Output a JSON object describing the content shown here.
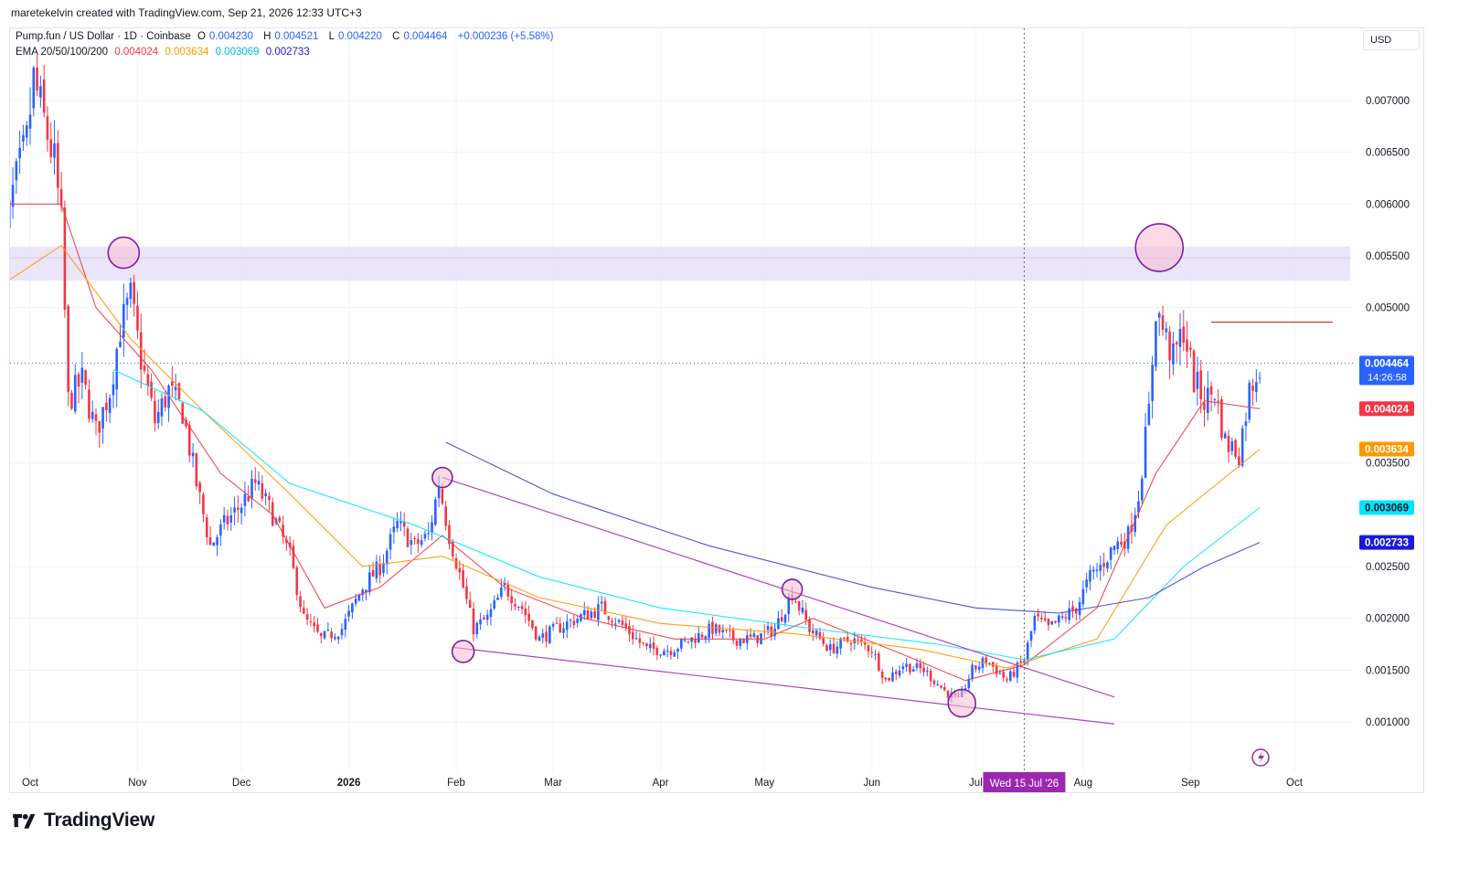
{
  "header": {
    "created_by": "maretekelvin created with TradingView.com, Sep 21, 2026 12:33 UTC+3"
  },
  "legend": {
    "symbol": "Pump.fun / US Dollar · 1D · Coinbase",
    "o_label": "O",
    "o_value": "0.004230",
    "h_label": "H",
    "h_value": "0.004521",
    "l_label": "L",
    "l_value": "0.004220",
    "c_label": "C",
    "c_value": "0.004464",
    "change": "+0.000236 (+5.58%)",
    "ema_label": "EMA 20/50/100/200",
    "ema20": "0.004024",
    "ema50": "0.003634",
    "ema100": "0.003069",
    "ema200": "0.002733"
  },
  "currency_button": "USD",
  "price_tags": {
    "last_price": "0.004464",
    "countdown": "14:26:58",
    "ema20": "0.004024",
    "ema50": "0.003634",
    "ema100": "0.003069",
    "ema200": "0.002733"
  },
  "crosshair_label": "Wed 15 Jul '26",
  "brand": "TradingView",
  "colors": {
    "up": "#2962ff",
    "down": "#f23645",
    "ema20": "#f23645",
    "ema50": "#ff9800",
    "ema100": "#00e5ff",
    "ema200": "#3f3fd9",
    "zone": "#e8e0f8",
    "trendline": "#ab47bc",
    "accent": "#9c27b0"
  },
  "chart_data": {
    "type": "candlestick",
    "interval": "1D",
    "y_axis": {
      "position": "right",
      "ticks": [
        "0.007000",
        "0.006500",
        "0.006000",
        "0.005500",
        "0.005000",
        "0.003500",
        "0.002500",
        "0.002000",
        "0.001500",
        "0.001000"
      ],
      "tick_values": [
        0.007,
        0.0065,
        0.006,
        0.0055,
        0.005,
        0.0035,
        0.0025,
        0.002,
        0.0015,
        0.001
      ]
    },
    "x_axis": {
      "labels": [
        "Oct",
        "Nov",
        "Dec",
        "2026",
        "Feb",
        "Mar",
        "Apr",
        "May",
        "Jun",
        "Jul",
        "Aug",
        "Sep",
        "Oct"
      ],
      "label_dates": [
        "2025-10-01",
        "2025-11-01",
        "2025-12-01",
        "2026-01-01",
        "2026-02-01",
        "2026-03-01",
        "2026-04-01",
        "2026-05-01",
        "2026-06-01",
        "2026-07-01",
        "2026-08-01",
        "2026-09-01",
        "2026-10-01"
      ]
    },
    "price_path": [
      [
        "2025-09-22",
        0.0053
      ],
      [
        "2025-09-26",
        0.0061
      ],
      [
        "2025-09-30",
        0.0066
      ],
      [
        "2025-10-02",
        0.0072
      ],
      [
        "2025-10-05",
        0.0068
      ],
      [
        "2025-10-08",
        0.0064
      ],
      [
        "2025-10-10",
        0.0058
      ],
      [
        "2025-10-12",
        0.0041
      ],
      [
        "2025-10-16",
        0.0043
      ],
      [
        "2025-10-20",
        0.0038
      ],
      [
        "2025-10-24",
        0.0042
      ],
      [
        "2025-10-27",
        0.0048
      ],
      [
        "2025-10-30",
        0.0051
      ],
      [
        "2025-11-02",
        0.0045
      ],
      [
        "2025-11-06",
        0.0039
      ],
      [
        "2025-11-10",
        0.0042
      ],
      [
        "2025-11-14",
        0.004
      ],
      [
        "2025-11-18",
        0.0033
      ],
      [
        "2025-11-22",
        0.0027
      ],
      [
        "2025-11-26",
        0.0029
      ],
      [
        "2025-12-01",
        0.0031
      ],
      [
        "2025-12-05",
        0.0033
      ],
      [
        "2025-12-10",
        0.003
      ],
      [
        "2025-12-15",
        0.0026
      ],
      [
        "2025-12-19",
        0.002
      ],
      [
        "2025-12-24",
        0.0018
      ],
      [
        "2025-12-30",
        0.0019
      ],
      [
        "2026-01-05",
        0.0023
      ],
      [
        "2026-01-10",
        0.0025
      ],
      [
        "2026-01-15",
        0.0029
      ],
      [
        "2026-01-20",
        0.0027
      ],
      [
        "2026-01-24",
        0.0028
      ],
      [
        "2026-01-27",
        0.0033
      ],
      [
        "2026-01-30",
        0.0028
      ],
      [
        "2026-02-03",
        0.0023
      ],
      [
        "2026-02-06",
        0.0019
      ],
      [
        "2026-02-10",
        0.002
      ],
      [
        "2026-02-15",
        0.0023
      ],
      [
        "2026-02-20",
        0.0021
      ],
      [
        "2026-02-25",
        0.0018
      ],
      [
        "2026-03-02",
        0.0019
      ],
      [
        "2026-03-08",
        0.002
      ],
      [
        "2026-03-15",
        0.0021
      ],
      [
        "2026-03-22",
        0.0019
      ],
      [
        "2026-03-28",
        0.0017
      ],
      [
        "2026-04-04",
        0.0017
      ],
      [
        "2026-04-10",
        0.0018
      ],
      [
        "2026-04-16",
        0.0019
      ],
      [
        "2026-04-22",
        0.0018
      ],
      [
        "2026-04-28",
        0.0018
      ],
      [
        "2026-05-04",
        0.0019
      ],
      [
        "2026-05-09",
        0.00225
      ],
      [
        "2026-05-14",
        0.0019
      ],
      [
        "2026-05-20",
        0.0017
      ],
      [
        "2026-05-26",
        0.0018
      ],
      [
        "2026-06-01",
        0.0017
      ],
      [
        "2026-06-05",
        0.0014
      ],
      [
        "2026-06-10",
        0.00155
      ],
      [
        "2026-06-16",
        0.0015
      ],
      [
        "2026-06-22",
        0.0013
      ],
      [
        "2026-06-26",
        0.0012
      ],
      [
        "2026-06-30",
        0.0015
      ],
      [
        "2026-07-04",
        0.0016
      ],
      [
        "2026-07-10",
        0.0014
      ],
      [
        "2026-07-15",
        0.0016
      ],
      [
        "2026-07-18",
        0.002
      ],
      [
        "2026-07-22",
        0.0019
      ],
      [
        "2026-07-26",
        0.002
      ],
      [
        "2026-07-30",
        0.0021
      ],
      [
        "2026-08-03",
        0.0024
      ],
      [
        "2026-08-06",
        0.0025
      ],
      [
        "2026-08-10",
        0.0027
      ],
      [
        "2026-08-14",
        0.0028
      ],
      [
        "2026-08-17",
        0.0032
      ],
      [
        "2026-08-20",
        0.004
      ],
      [
        "2026-08-22",
        0.005
      ],
      [
        "2026-08-24",
        0.0048
      ],
      [
        "2026-08-27",
        0.0045
      ],
      [
        "2026-08-30",
        0.0048
      ],
      [
        "2026-09-02",
        0.0043
      ],
      [
        "2026-09-05",
        0.0041
      ],
      [
        "2026-09-08",
        0.0042
      ],
      [
        "2026-09-11",
        0.0037
      ],
      [
        "2026-09-15",
        0.0036
      ],
      [
        "2026-09-18",
        0.0042
      ],
      [
        "2026-09-21",
        0.00446
      ]
    ],
    "ema_lines": [
      {
        "name": "EMA 20",
        "color": "#f23645",
        "points": [
          [
            "2025-09-22",
            0.006
          ],
          [
            "2025-10-10",
            0.006
          ],
          [
            "2025-10-20",
            0.005
          ],
          [
            "2025-11-05",
            0.0044
          ],
          [
            "2025-11-25",
            0.0034
          ],
          [
            "2025-12-10",
            0.003
          ],
          [
            "2025-12-25",
            0.0021
          ],
          [
            "2026-01-10",
            0.0023
          ],
          [
            "2026-01-28",
            0.0028
          ],
          [
            "2026-02-15",
            0.0023
          ],
          [
            "2026-03-10",
            0.002
          ],
          [
            "2026-04-05",
            0.0018
          ],
          [
            "2026-05-01",
            0.0018
          ],
          [
            "2026-05-15",
            0.002
          ],
          [
            "2026-06-10",
            0.00165
          ],
          [
            "2026-06-28",
            0.0014
          ],
          [
            "2026-07-15",
            0.00155
          ],
          [
            "2026-08-05",
            0.0021
          ],
          [
            "2026-08-22",
            0.0034
          ],
          [
            "2026-09-05",
            0.0041
          ],
          [
            "2026-09-21",
            0.004024
          ]
        ]
      },
      {
        "name": "EMA 50",
        "color": "#ff9800",
        "points": [
          [
            "2025-09-22",
            0.0052
          ],
          [
            "2025-10-10",
            0.0056
          ],
          [
            "2025-10-30",
            0.0047
          ],
          [
            "2025-11-20",
            0.004
          ],
          [
            "2025-12-15",
            0.0032
          ],
          [
            "2026-01-05",
            0.0025
          ],
          [
            "2026-01-28",
            0.0026
          ],
          [
            "2026-02-25",
            0.0022
          ],
          [
            "2026-04-01",
            0.00195
          ],
          [
            "2026-05-10",
            0.00185
          ],
          [
            "2026-06-15",
            0.0017
          ],
          [
            "2026-07-10",
            0.00152
          ],
          [
            "2026-08-05",
            0.0018
          ],
          [
            "2026-08-25",
            0.0029
          ],
          [
            "2026-09-21",
            0.003634
          ]
        ]
      },
      {
        "name": "EMA 100",
        "color": "#00e5ff",
        "points": [
          [
            "2025-10-25",
            0.0044
          ],
          [
            "2025-11-20",
            0.004
          ],
          [
            "2025-12-15",
            0.0033
          ],
          [
            "2026-01-20",
            0.0029
          ],
          [
            "2026-02-25",
            0.0024
          ],
          [
            "2026-04-01",
            0.0021
          ],
          [
            "2026-05-15",
            0.0019
          ],
          [
            "2026-06-20",
            0.00175
          ],
          [
            "2026-07-15",
            0.0016
          ],
          [
            "2026-08-10",
            0.0018
          ],
          [
            "2026-08-30",
            0.0025
          ],
          [
            "2026-09-21",
            0.003069
          ]
        ]
      },
      {
        "name": "EMA 200",
        "color": "#3f3fd9",
        "points": [
          [
            "2026-01-29",
            0.0037
          ],
          [
            "2026-03-01",
            0.0032
          ],
          [
            "2026-04-15",
            0.0027
          ],
          [
            "2026-06-01",
            0.0023
          ],
          [
            "2026-07-01",
            0.0021
          ],
          [
            "2026-07-25",
            0.00205
          ],
          [
            "2026-08-20",
            0.0022
          ],
          [
            "2026-09-05",
            0.0025
          ],
          [
            "2026-09-21",
            0.002733
          ]
        ]
      }
    ],
    "annotations": {
      "resistance_zone": [
        0.00526,
        0.00559
      ],
      "horizontal_line": {
        "value": 0.00486,
        "from": "2026-09-07",
        "to": "2026-10-12"
      },
      "trendlines": [
        {
          "from": [
            "2026-01-28",
            0.00336
          ],
          "to": [
            "2026-08-10",
            0.00124
          ]
        },
        {
          "from": [
            "2026-01-31",
            0.00172
          ],
          "to": [
            "2026-08-10",
            0.00098
          ]
        }
      ],
      "circles": [
        {
          "date": "2025-10-28",
          "value": 0.00553
        },
        {
          "date": "2026-01-28",
          "value": 0.00336
        },
        {
          "date": "2026-02-03",
          "value": 0.00168
        },
        {
          "date": "2026-05-09",
          "value": 0.00228
        },
        {
          "date": "2026-06-27",
          "value": 0.00118
        },
        {
          "date": "2026-08-23",
          "value": 0.00558
        }
      ],
      "crosshair_date": "2026-07-15",
      "last_price_line": 0.004464
    }
  }
}
